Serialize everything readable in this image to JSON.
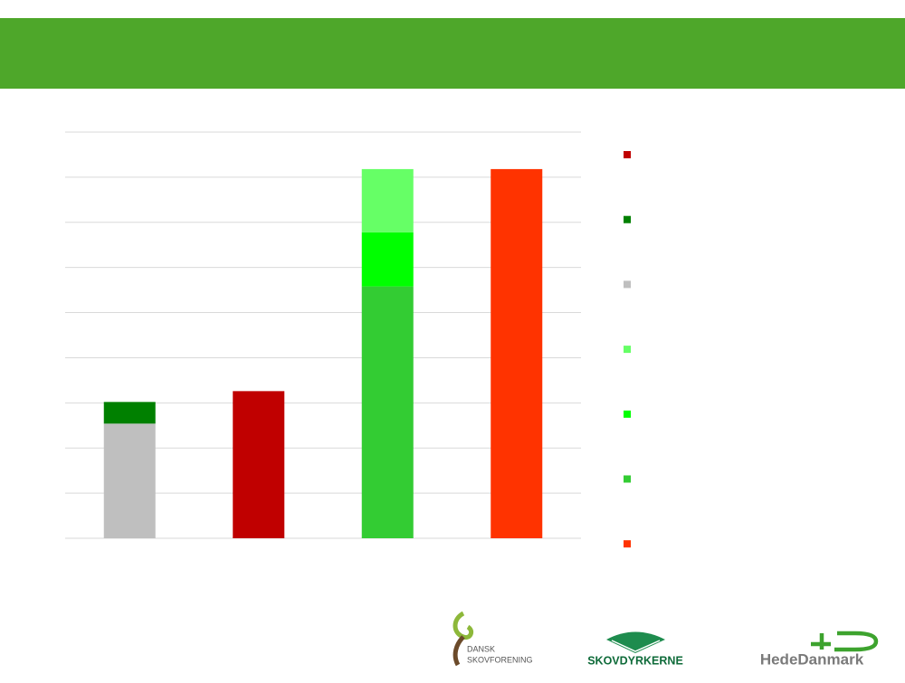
{
  "chart_data": {
    "type": "stacked-bar",
    "categories": [
      null,
      null,
      null,
      null
    ],
    "series": [
      {
        "color": "#C00000",
        "values": [
          null,
          3.26,
          null,
          null
        ]
      },
      {
        "color": "#008000",
        "values": [
          0.48,
          null,
          null,
          null
        ]
      },
      {
        "color": "#BFBFBF",
        "values": [
          2.54,
          null,
          null,
          null
        ]
      },
      {
        "color": "#66FF66",
        "values": [
          null,
          null,
          1.4,
          null
        ]
      },
      {
        "color": "#00FF00",
        "values": [
          null,
          null,
          1.2,
          null
        ]
      },
      {
        "color": "#33CC33",
        "values": [
          null,
          null,
          5.58,
          null
        ]
      },
      {
        "color": "#FF3300",
        "values": [
          null,
          null,
          null,
          8.18
        ]
      }
    ],
    "ylim": [
      0,
      9
    ],
    "yticks": [
      0,
      1,
      2,
      3,
      4,
      5,
      6,
      7,
      8,
      9
    ],
    "grid": true,
    "legend": "right"
  },
  "logos": {
    "dansk": [
      "DANSK",
      "SKOVFORENING"
    ],
    "skovdyrkerne": "SKOVDYRKERNE",
    "hededanmark": "HedeDanmark"
  }
}
